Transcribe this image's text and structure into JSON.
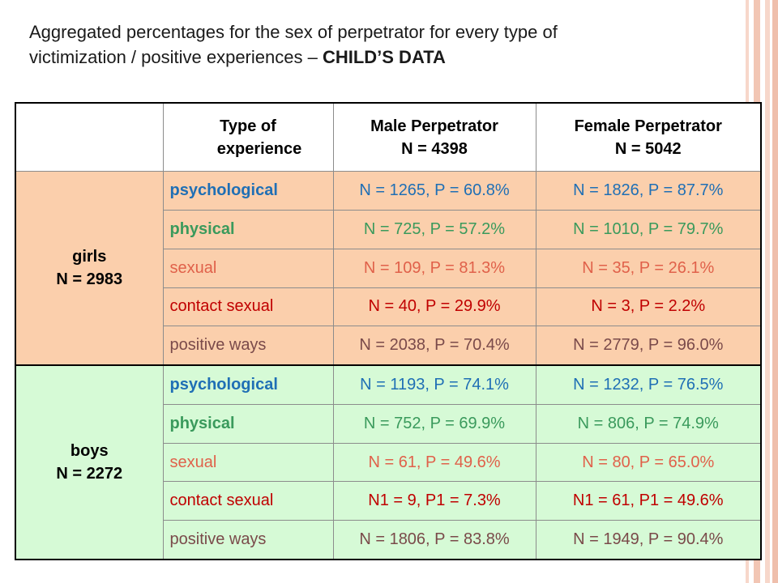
{
  "slide": {
    "title_line1": "Aggregated percentages for the sex of perpetrator for every type of",
    "title_line2": "victimization / positive experiences – ",
    "title_bold": "CHILD’S DATA"
  },
  "table": {
    "headers": {
      "type_line1": "Type of",
      "type_line2": "experience",
      "male_line1": "Male Perpetrator",
      "male_line2": "N = 4398",
      "female_line1": "Female Perpetrator",
      "female_line2": "N = 5042"
    },
    "girls": {
      "label": "girls",
      "n": "N = 2983",
      "rows": [
        {
          "type": "psychological",
          "male": "N = 1265, P = 60.8%",
          "female": "N = 1826, P = 87.7%"
        },
        {
          "type": "physical",
          "male": "N = 725, P = 57.2%",
          "female": "N = 1010, P = 79.7%"
        },
        {
          "type": "sexual",
          "male": "N = 109, P = 81.3%",
          "female": "N = 35, P = 26.1%"
        },
        {
          "type": "contact sexual",
          "male": "N = 40, P = 29.9%",
          "female": "N = 3, P = 2.2%"
        },
        {
          "type": "positive ways",
          "male": "N = 2038, P = 70.4%",
          "female": "N = 2779, P = 96.0%"
        }
      ]
    },
    "boys": {
      "label": "boys",
      "n": "N = 2272",
      "rows": [
        {
          "type": "psychological",
          "male": "N = 1193, P = 74.1%",
          "female": "N = 1232, P = 76.5%"
        },
        {
          "type": "physical",
          "male": "N = 752, P = 69.9%",
          "female": "N = 806, P = 74.9%"
        },
        {
          "type": "sexual",
          "male": "N = 61, P = 49.6%",
          "female": "N = 80, P = 65.0%"
        },
        {
          "type": "contact sexual",
          "male": "N1 = 9, P1 = 7.3%",
          "female": "N1 = 61, P1 = 49.6%"
        },
        {
          "type": "positive ways",
          "male": "N = 1806, P = 83.8%",
          "female": "N = 1949, P = 90.4%"
        }
      ]
    }
  },
  "colors": {
    "girls_bg": "#fbcfac",
    "boys_bg": "#d6fad6",
    "psychological": "#1f6fb5",
    "physical": "#3a9a5c",
    "sexual": "#e0614a",
    "contact_sexual": "#c00000",
    "positive_ways": "#7a4a4a",
    "border_stripe": "#f3c9b8"
  }
}
